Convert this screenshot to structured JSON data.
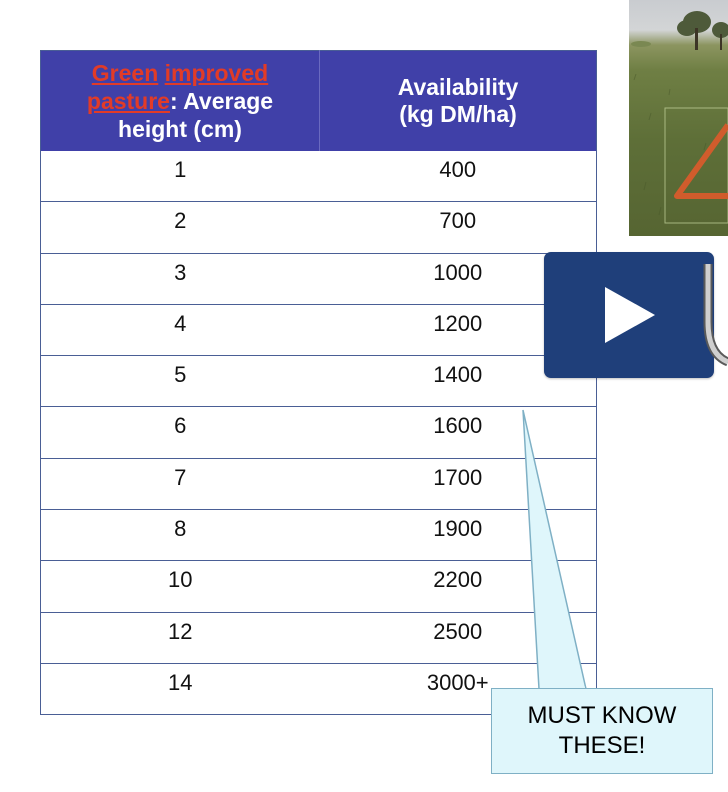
{
  "table": {
    "header": {
      "col1_red1": "Green",
      "col1_red2": "improved",
      "col1_red3": "pasture",
      "col1_rest_line2": ": Average",
      "col1_line3": "height (cm)",
      "col2_line1": "Availability",
      "col2_line2": "(kg DM/ha)"
    },
    "rows": [
      {
        "height": "1",
        "availability": "400"
      },
      {
        "height": "2",
        "availability": "700"
      },
      {
        "height": "3",
        "availability": "1000"
      },
      {
        "height": "4",
        "availability": "1200"
      },
      {
        "height": "5",
        "availability": "1400"
      },
      {
        "height": "6",
        "availability": "1600"
      },
      {
        "height": "7",
        "availability": "1700"
      },
      {
        "height": "8",
        "availability": "1900"
      },
      {
        "height": "10",
        "availability": "2200"
      },
      {
        "height": "12",
        "availability": "2500"
      },
      {
        "height": "14",
        "availability": "3000+"
      }
    ]
  },
  "callout": {
    "line1": "MUST KNOW",
    "line2": "THESE!"
  },
  "video": {
    "play_icon": "play-icon"
  },
  "colors": {
    "header_bg": "#4040a8",
    "header_highlight": "#e23b27",
    "play_button_bg": "#1f3f7a",
    "callout_bg": "#dff6fb"
  }
}
